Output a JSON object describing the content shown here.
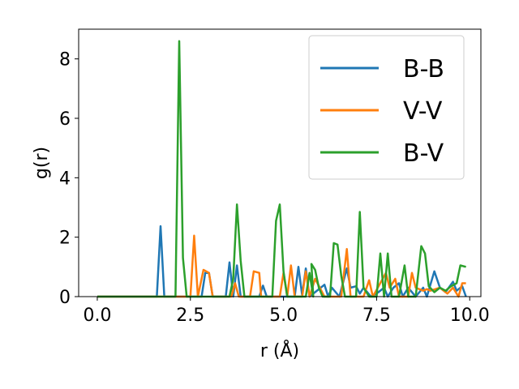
{
  "chart_data": {
    "type": "line",
    "title": "",
    "xlabel": "r (Å)",
    "ylabel": "g(r)",
    "xlim": [
      -0.5,
      10.3
    ],
    "ylim": [
      0,
      9.0
    ],
    "xticks": [
      "0.0",
      "2.5",
      "5.0",
      "7.5",
      "10.0"
    ],
    "xtick_values": [
      0,
      2.5,
      5.0,
      7.5,
      10.0
    ],
    "yticks": [
      "0",
      "2",
      "4",
      "6",
      "8"
    ],
    "ytick_values": [
      0,
      2,
      4,
      6,
      8
    ],
    "grid": false,
    "legend_position": "top-right",
    "series": [
      {
        "name": "B-B",
        "color": "#1f77b4",
        "points": [
          [
            0.0,
            0
          ],
          [
            1.6,
            0
          ],
          [
            1.7,
            2.37
          ],
          [
            1.8,
            0
          ],
          [
            2.8,
            0
          ],
          [
            2.9,
            0.8
          ],
          [
            3.0,
            0.8
          ],
          [
            3.1,
            0
          ],
          [
            3.45,
            0
          ],
          [
            3.55,
            1.15
          ],
          [
            3.65,
            0
          ],
          [
            3.75,
            1.05
          ],
          [
            3.85,
            0
          ],
          [
            4.05,
            0
          ],
          [
            4.15,
            0
          ],
          [
            4.35,
            0
          ],
          [
            4.45,
            0.37
          ],
          [
            4.55,
            0
          ],
          [
            5.3,
            0
          ],
          [
            5.4,
            1.0
          ],
          [
            5.5,
            0.05
          ],
          [
            5.6,
            0.95
          ],
          [
            5.7,
            0
          ],
          [
            6.0,
            0.3
          ],
          [
            6.1,
            0.4
          ],
          [
            6.2,
            0
          ],
          [
            6.3,
            0.3
          ],
          [
            6.5,
            0
          ],
          [
            6.7,
            0.95
          ],
          [
            6.8,
            0.3
          ],
          [
            6.95,
            0.35
          ],
          [
            7.05,
            0.1
          ],
          [
            7.15,
            0.3
          ],
          [
            7.35,
            0
          ],
          [
            7.55,
            0.15
          ],
          [
            7.7,
            0.3
          ],
          [
            7.8,
            0
          ],
          [
            7.95,
            0.3
          ],
          [
            8.1,
            0.45
          ],
          [
            8.2,
            0
          ],
          [
            8.35,
            0.3
          ],
          [
            8.55,
            0
          ],
          [
            8.75,
            0.3
          ],
          [
            8.85,
            0
          ],
          [
            9.05,
            0.85
          ],
          [
            9.2,
            0.3
          ],
          [
            9.35,
            0.15
          ],
          [
            9.55,
            0.5
          ],
          [
            9.65,
            0.2
          ],
          [
            9.8,
            0.35
          ],
          [
            9.9,
            0
          ]
        ]
      },
      {
        "name": "V-V",
        "color": "#ff7f0e",
        "points": [
          [
            0.0,
            0
          ],
          [
            2.5,
            0
          ],
          [
            2.6,
            2.05
          ],
          [
            2.7,
            0
          ],
          [
            2.85,
            0.9
          ],
          [
            3.0,
            0.8
          ],
          [
            3.1,
            0
          ],
          [
            3.6,
            0
          ],
          [
            3.7,
            0.45
          ],
          [
            3.8,
            0
          ],
          [
            4.1,
            0
          ],
          [
            4.2,
            0.85
          ],
          [
            4.35,
            0.8
          ],
          [
            4.4,
            0
          ],
          [
            4.9,
            0
          ],
          [
            5.0,
            0.8
          ],
          [
            5.1,
            0
          ],
          [
            5.2,
            1.05
          ],
          [
            5.3,
            0
          ],
          [
            5.5,
            0
          ],
          [
            5.6,
            0.85
          ],
          [
            5.7,
            0
          ],
          [
            5.85,
            0.6
          ],
          [
            6.1,
            0
          ],
          [
            6.55,
            0
          ],
          [
            6.7,
            1.6
          ],
          [
            6.8,
            0
          ],
          [
            7.15,
            0
          ],
          [
            7.3,
            0.55
          ],
          [
            7.4,
            0
          ],
          [
            7.75,
            0.8
          ],
          [
            7.85,
            0.3
          ],
          [
            8.0,
            0.6
          ],
          [
            8.1,
            0
          ],
          [
            8.35,
            0
          ],
          [
            8.45,
            0.8
          ],
          [
            8.55,
            0.3
          ],
          [
            8.75,
            0.2
          ],
          [
            8.85,
            0.25
          ],
          [
            8.95,
            0.2
          ],
          [
            9.2,
            0.3
          ],
          [
            9.4,
            0.1
          ],
          [
            9.55,
            0.3
          ],
          [
            9.7,
            0
          ],
          [
            9.8,
            0.45
          ],
          [
            9.9,
            0.45
          ]
        ]
      },
      {
        "name": "B-V",
        "color": "#2ca02c",
        "points": [
          [
            0.0,
            0
          ],
          [
            2.1,
            0
          ],
          [
            2.2,
            8.6
          ],
          [
            2.3,
            1.3
          ],
          [
            2.4,
            0
          ],
          [
            3.55,
            0
          ],
          [
            3.65,
            0.6
          ],
          [
            3.75,
            3.1
          ],
          [
            3.85,
            1.2
          ],
          [
            3.95,
            0
          ],
          [
            4.7,
            0
          ],
          [
            4.8,
            2.55
          ],
          [
            4.9,
            3.1
          ],
          [
            5.0,
            0.85
          ],
          [
            5.1,
            0
          ],
          [
            5.6,
            0
          ],
          [
            5.7,
            0.8
          ],
          [
            5.8,
            0
          ],
          [
            5.75,
            1.1
          ],
          [
            5.85,
            0.9
          ],
          [
            5.95,
            0.3
          ],
          [
            6.05,
            0
          ],
          [
            6.25,
            0
          ],
          [
            6.35,
            1.8
          ],
          [
            6.45,
            1.75
          ],
          [
            6.55,
            0.7
          ],
          [
            6.65,
            0
          ],
          [
            6.95,
            0
          ],
          [
            7.05,
            2.85
          ],
          [
            7.15,
            0.3
          ],
          [
            7.3,
            0
          ],
          [
            7.5,
            0
          ],
          [
            7.6,
            1.45
          ],
          [
            7.7,
            0
          ],
          [
            7.8,
            1.45
          ],
          [
            7.9,
            0
          ],
          [
            8.1,
            0
          ],
          [
            8.25,
            1.05
          ],
          [
            8.35,
            0
          ],
          [
            8.55,
            0
          ],
          [
            8.7,
            1.7
          ],
          [
            8.8,
            1.45
          ],
          [
            8.9,
            0.35
          ],
          [
            9.05,
            0.15
          ],
          [
            9.2,
            0.3
          ],
          [
            9.35,
            0.2
          ],
          [
            9.5,
            0.35
          ],
          [
            9.65,
            0.45
          ],
          [
            9.75,
            1.05
          ],
          [
            9.9,
            1.0
          ]
        ]
      }
    ]
  }
}
